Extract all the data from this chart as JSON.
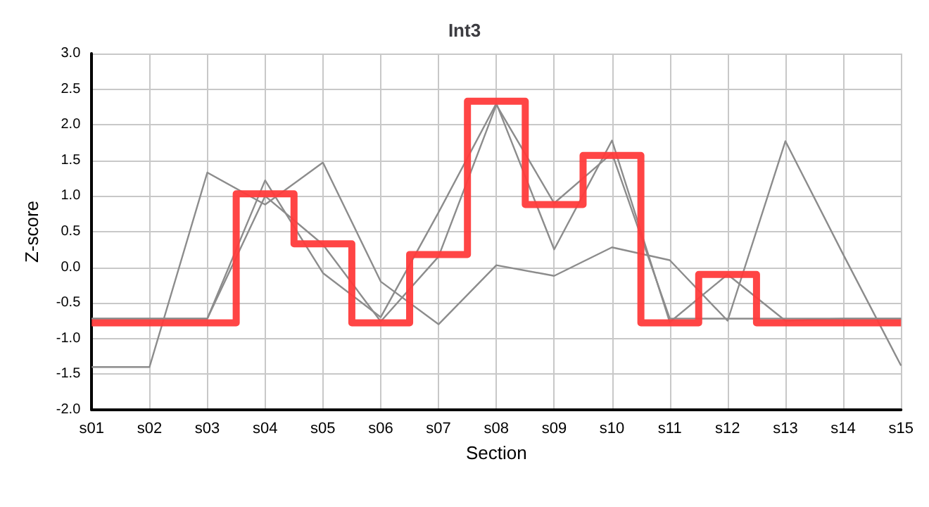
{
  "chart_data": {
    "type": "line",
    "title": "Int3",
    "xlabel": "Section",
    "ylabel": "Z-score",
    "categories": [
      "s01",
      "s02",
      "s03",
      "s04",
      "s05",
      "s06",
      "s07",
      "s08",
      "s09",
      "s10",
      "s11",
      "s12",
      "s13",
      "s14",
      "s15"
    ],
    "series": [
      {
        "color": "#8c8c8c",
        "values": [
          -1.4,
          -1.4,
          1.33,
          0.88,
          1.47,
          -0.2,
          -0.8,
          0.03,
          -0.12,
          0.28,
          0.1,
          -0.75,
          1.77,
          0.18,
          -1.38
        ]
      },
      {
        "color": "#8c8c8c",
        "values": [
          -0.72,
          -0.72,
          -0.72,
          1.22,
          -0.08,
          -0.7,
          0.77,
          2.3,
          0.25,
          1.78,
          -0.77,
          -0.1,
          -0.75,
          -0.72,
          -0.72
        ]
      },
      {
        "color": "#8c8c8c",
        "values": [
          -0.72,
          -0.72,
          -0.72,
          1.0,
          0.32,
          -0.76,
          0.15,
          2.28,
          0.9,
          1.6,
          -0.72,
          -0.72,
          -0.72,
          -0.72,
          -0.72
        ]
      },
      {
        "type": "step",
        "color": "#ff3b3b",
        "values": [
          -0.78,
          -0.78,
          -0.78,
          1.03,
          0.33,
          -0.78,
          0.18,
          2.33,
          0.88,
          1.57,
          -0.78,
          -0.1,
          -0.78,
          -0.78,
          -0.78
        ]
      }
    ],
    "ylim": [
      -2,
      3
    ],
    "yticks": [
      {
        "value": -2,
        "label": "-2.0"
      },
      {
        "value": -1.5,
        "label": "-1.5"
      },
      {
        "value": -1,
        "label": "-1.0"
      },
      {
        "value": -0.5,
        "label": "-0.5"
      },
      {
        "value": 0,
        "label": "0.0"
      },
      {
        "value": 0.5,
        "label": "0.5"
      },
      {
        "value": 1,
        "label": "1.0"
      },
      {
        "value": 1.5,
        "label": "1.5"
      },
      {
        "value": 2,
        "label": "2.0"
      },
      {
        "value": 2.5,
        "label": "2.5"
      },
      {
        "value": 3,
        "label": "3.0"
      }
    ],
    "grid": true,
    "marker": "none",
    "line_style": "solid"
  }
}
